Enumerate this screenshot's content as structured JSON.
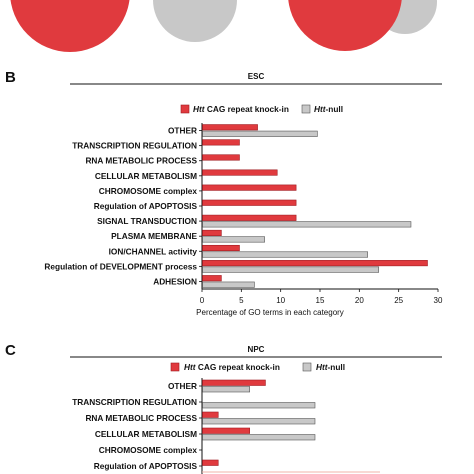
{
  "colors": {
    "red": "#e03a3e",
    "gray": "#c8c8c8",
    "red_edge": "#a01c22",
    "gray_edge": "#555555"
  },
  "venn_labels": {
    "left_a": "",
    "left_b": "",
    "left_c": "",
    "right_a": "",
    "right_b": "",
    "right_c": ""
  },
  "panels": [
    {
      "letter": "B",
      "title": "ESC"
    },
    {
      "letter": "C",
      "title": "NPC"
    }
  ],
  "legend": {
    "knockin_italic": "Htt",
    "knockin_rest": " CAG repeat knock-in",
    "null_italic": "Htt",
    "null_rest": "-null"
  },
  "xlabel": "Percentage of GO terms in each category",
  "chart_data": [
    {
      "type": "bar",
      "orientation": "horizontal",
      "title": "ESC",
      "xlabel": "Percentage of GO terms in each category",
      "xlim": [
        0,
        30
      ],
      "xticks": [
        0,
        5,
        10,
        15,
        20,
        25,
        30
      ],
      "categories": [
        "OTHER",
        "TRANSCRIPTION REGULATION",
        "RNA METABOLIC PROCESS",
        "CELLULAR METABOLISM",
        "CHROMOSOME complex",
        "Regulation of APOPTOSIS",
        "SIGNAL TRANSDUCTION",
        "PLASMA MEMBRANE",
        "ION/CHANNEL activity",
        "Regulation of DEVELOPMENT process",
        "ADHESION"
      ],
      "series": [
        {
          "name": "Htt CAG repeat knock-in",
          "color": "#e03a3e",
          "values": [
            7.0,
            4.7,
            4.7,
            9.5,
            11.9,
            11.9,
            11.9,
            2.4,
            4.7,
            28.6,
            2.4
          ]
        },
        {
          "name": "Htt-null",
          "color": "#c8c8c8",
          "values": [
            14.6,
            0,
            0,
            0,
            0,
            0,
            26.5,
            7.9,
            21.0,
            22.4,
            6.6
          ]
        }
      ],
      "legend_position": "top"
    },
    {
      "type": "bar",
      "orientation": "horizontal",
      "title": "NPC",
      "categories": [
        "OTHER",
        "TRANSCRIPTION REGULATION",
        "RNA METABOLIC PROCESS",
        "CELLULAR METABOLISM",
        "CHROMOSOME complex",
        "Regulation of APOPTOSIS"
      ],
      "series": [
        {
          "name": "Htt CAG repeat knock-in",
          "color": "#e03a3e",
          "values": [
            8.0,
            0,
            2.0,
            6.0,
            0,
            2.0
          ]
        },
        {
          "name": "Htt-null",
          "color": "#c8c8c8",
          "values": [
            6.0,
            14.3,
            14.3,
            14.3,
            0,
            0
          ]
        }
      ],
      "xlim": [
        0,
        30
      ],
      "legend_position": "top"
    }
  ]
}
